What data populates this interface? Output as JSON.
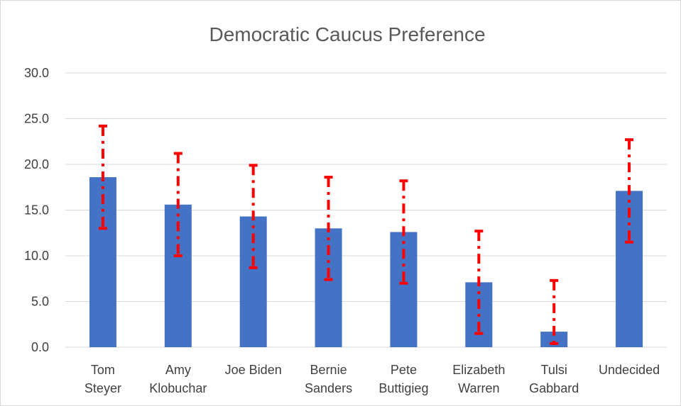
{
  "chart_data": {
    "type": "bar",
    "title": "Democratic Caucus Preference",
    "xlabel": "",
    "ylabel": "",
    "categories": [
      [
        "Tom",
        "Steyer"
      ],
      [
        "Amy",
        "Klobuchar"
      ],
      [
        "Joe Biden"
      ],
      [
        "Bernie",
        "Sanders"
      ],
      [
        "Pete",
        "Buttigieg"
      ],
      [
        "Elizabeth",
        "Warren"
      ],
      [
        "Tulsi",
        "Gabbard"
      ],
      [
        "Undecided"
      ]
    ],
    "values": [
      18.6,
      15.6,
      14.3,
      13.0,
      12.6,
      7.1,
      1.7,
      17.1
    ],
    "error_low": [
      13.0,
      10.0,
      8.7,
      7.4,
      7.0,
      1.5,
      0.4,
      11.5
    ],
    "error_high": [
      24.2,
      21.2,
      19.9,
      18.6,
      18.2,
      12.7,
      7.3,
      22.7
    ],
    "ylim": [
      0,
      30
    ],
    "y_ticks": [
      "0.0",
      "5.0",
      "10.0",
      "15.0",
      "20.0",
      "25.0",
      "30.0"
    ],
    "grid": true,
    "legend": "none",
    "colors": {
      "bar": "#4472c4",
      "error_bar": "#ff0000",
      "grid": "#d9d9d9",
      "title": "#595959",
      "text": "#404040"
    }
  }
}
